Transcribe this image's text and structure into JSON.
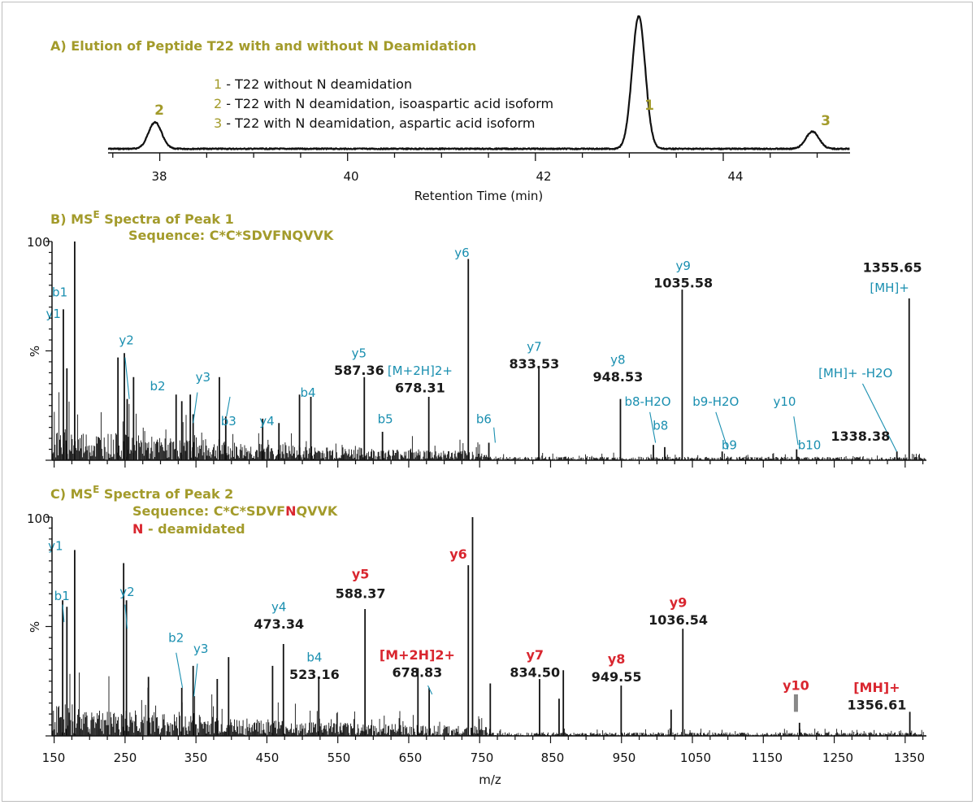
{
  "colors": {
    "title": "#a39b2b",
    "ion_label": "#1a8fb0",
    "deamidated": "#d9262f",
    "trace": "#111111",
    "mass_label": "#1b1b1b"
  },
  "chart_data": [
    {
      "type": "line",
      "title": "A) Elution of Peptide T22 with and without N Deamidation",
      "xlabel": "Retention Time (min)",
      "ylabel": "",
      "xlim": [
        37.45,
        45.35
      ],
      "xticks": [
        "38",
        "40",
        "42",
        "44"
      ],
      "legend": [
        {
          "number": "1",
          "text": "- T22 without N deamidation"
        },
        {
          "number": "2",
          "text": "- T22 with N deamidation, isoaspartic acid isoform"
        },
        {
          "number": "3",
          "text": "- T22 with N deamidation, aspartic acid isoform"
        }
      ],
      "peaks": [
        {
          "label": "2",
          "rt": 37.95,
          "height": 0.2
        },
        {
          "label": "1",
          "rt": 43.1,
          "height": 1.0
        },
        {
          "label": "3",
          "rt": 44.95,
          "height": 0.13
        }
      ]
    },
    {
      "type": "bar",
      "title_prefix": "B) MS",
      "title_sup": "E",
      "title_suffix": " Spectra of Peak 1",
      "sequence_label": "Sequence: C*C*SDVFNQVVK",
      "xlabel": "m/z",
      "ylabel": "%",
      "y_top_label": "100",
      "xlim": [
        147,
        1380
      ],
      "ylim": [
        0,
        100
      ],
      "peaks": [
        {
          "mz": 163,
          "i": 69
        },
        {
          "mz": 168,
          "i": 42
        },
        {
          "mz": 179,
          "i": 100
        },
        {
          "mz": 240,
          "i": 47
        },
        {
          "mz": 249,
          "i": 49
        },
        {
          "mz": 253,
          "i": 28
        },
        {
          "mz": 262,
          "i": 38
        },
        {
          "mz": 322,
          "i": 30
        },
        {
          "mz": 330,
          "i": 27
        },
        {
          "mz": 342,
          "i": 30
        },
        {
          "mz": 346,
          "i": 21
        },
        {
          "mz": 383,
          "i": 38
        },
        {
          "mz": 392,
          "i": 20
        },
        {
          "mz": 444,
          "i": 19
        },
        {
          "mz": 467,
          "i": 17
        },
        {
          "mz": 496,
          "i": 30
        },
        {
          "mz": 512,
          "i": 29
        },
        {
          "mz": 587.36,
          "i": 38
        },
        {
          "mz": 613,
          "i": 13
        },
        {
          "mz": 678.31,
          "i": 29
        },
        {
          "mz": 734,
          "i": 92
        },
        {
          "mz": 763,
          "i": 8
        },
        {
          "mz": 833.53,
          "i": 42
        },
        {
          "mz": 948.53,
          "i": 28
        },
        {
          "mz": 995,
          "i": 7
        },
        {
          "mz": 1011,
          "i": 6
        },
        {
          "mz": 1035.58,
          "i": 78
        },
        {
          "mz": 1092,
          "i": 4
        },
        {
          "mz": 1197,
          "i": 5
        },
        {
          "mz": 1338.38,
          "i": 4
        },
        {
          "mz": 1355.65,
          "i": 74
        }
      ],
      "labels": [
        {
          "text": "y1",
          "color": "cyan",
          "mz": 149,
          "i": 65,
          "bold": false
        },
        {
          "text": "b1",
          "color": "cyan",
          "mz": 158,
          "i": 75,
          "bold": false
        },
        {
          "text": "y2",
          "color": "cyan",
          "mz": 252,
          "i": 53,
          "bold": false
        },
        {
          "text": "b2",
          "color": "cyan",
          "mz": 296,
          "i": 32,
          "bold": false
        },
        {
          "text": "y3",
          "color": "cyan",
          "mz": 360,
          "i": 36,
          "bold": false
        },
        {
          "text": "b3",
          "color": "cyan",
          "mz": 396,
          "i": 16,
          "bold": false
        },
        {
          "text": "y4",
          "color": "cyan",
          "mz": 450,
          "i": 16,
          "bold": false
        },
        {
          "text": "b4",
          "color": "cyan",
          "mz": 508,
          "i": 29,
          "bold": false
        },
        {
          "text": "y5",
          "color": "cyan",
          "mz": 580,
          "i": 47,
          "bold": false
        },
        {
          "text": "587.36",
          "color": "dark",
          "mz": 580,
          "i": 39,
          "bold": true
        },
        {
          "text": "b5",
          "color": "cyan",
          "mz": 617,
          "i": 17,
          "bold": false
        },
        {
          "text": "[M+2H]2+",
          "color": "cyan",
          "mz": 666,
          "i": 39,
          "bold": false
        },
        {
          "text": "678.31",
          "color": "dark",
          "mz": 666,
          "i": 31,
          "bold": true
        },
        {
          "text": "b6",
          "color": "cyan",
          "mz": 756,
          "i": 17,
          "bold": false
        },
        {
          "text": "y6",
          "color": "cyan",
          "mz": 725,
          "i": 93,
          "bold": false
        },
        {
          "text": "y7",
          "color": "cyan",
          "mz": 827,
          "i": 50,
          "bold": false
        },
        {
          "text": "833.53",
          "color": "dark",
          "mz": 827,
          "i": 42,
          "bold": true
        },
        {
          "text": "y8",
          "color": "cyan",
          "mz": 945,
          "i": 44,
          "bold": false
        },
        {
          "text": "948.53",
          "color": "dark",
          "mz": 945,
          "i": 36,
          "bold": true
        },
        {
          "text": "b8-H2O",
          "color": "cyan",
          "mz": 987,
          "i": 25,
          "bold": false
        },
        {
          "text": "b8",
          "color": "cyan",
          "mz": 1005,
          "i": 14,
          "bold": false
        },
        {
          "text": "y9",
          "color": "cyan",
          "mz": 1037,
          "i": 87,
          "bold": false
        },
        {
          "text": "1035.58",
          "color": "dark",
          "mz": 1037,
          "i": 79,
          "bold": true
        },
        {
          "text": "b9-H2O",
          "color": "cyan",
          "mz": 1083,
          "i": 25,
          "bold": false
        },
        {
          "text": "b9",
          "color": "cyan",
          "mz": 1102,
          "i": 5,
          "bold": false
        },
        {
          "text": "y10",
          "color": "cyan",
          "mz": 1180,
          "i": 25,
          "bold": false
        },
        {
          "text": "b10",
          "color": "cyan",
          "mz": 1215,
          "i": 5,
          "bold": false
        },
        {
          "text": "1338.38",
          "color": "dark",
          "mz": 1287,
          "i": 9,
          "bold": true
        },
        {
          "text": "[MH]+ -H2O",
          "color": "cyan",
          "mz": 1280,
          "i": 38,
          "bold": false
        },
        {
          "text": "1355.65",
          "color": "dark",
          "mz": 1332,
          "i": 86,
          "bold": true
        },
        {
          "text": "[MH]+",
          "color": "cyan",
          "mz": 1328,
          "i": 77,
          "bold": false
        }
      ],
      "connectors": [
        {
          "from": [
            250,
            47
          ],
          "to": [
            256,
            28
          ]
        },
        {
          "from": [
            352,
            31
          ],
          "to": [
            346,
            17
          ]
        },
        {
          "from": [
            398,
            29
          ],
          "to": [
            393,
            20
          ]
        },
        {
          "from": [
            770,
            15
          ],
          "to": [
            772,
            8
          ]
        },
        {
          "from": [
            990,
            22
          ],
          "to": [
            998,
            8
          ]
        },
        {
          "from": [
            1083,
            22
          ],
          "to": [
            1100,
            5
          ]
        },
        {
          "from": [
            1193,
            20
          ],
          "to": [
            1199,
            7
          ]
        },
        {
          "from": [
            1290,
            35
          ],
          "to": [
            1338,
            4
          ]
        }
      ]
    },
    {
      "type": "bar",
      "title_prefix": "C) MS",
      "title_sup": "E",
      "title_suffix": " Spectra of Peak 2",
      "sequence_prefix": "Sequence: C*C*SDVF",
      "sequence_mark": "N",
      "sequence_suffix": "QVVK",
      "note_mark": "N",
      "note_suffix": " - deamidated",
      "xlabel": "m/z",
      "ylabel": "%",
      "y_top_label": "100",
      "xlim": [
        147,
        1380
      ],
      "ylim": [
        0,
        100
      ],
      "xticks": [
        "150",
        "250",
        "350",
        "450",
        "550",
        "650",
        "750",
        "850",
        "950",
        "1050",
        "1150",
        "1250",
        "1350"
      ],
      "peaks": [
        {
          "mz": 162,
          "i": 62
        },
        {
          "mz": 168,
          "i": 59
        },
        {
          "mz": 179,
          "i": 85
        },
        {
          "mz": 248,
          "i": 79
        },
        {
          "mz": 252,
          "i": 62
        },
        {
          "mz": 283,
          "i": 27
        },
        {
          "mz": 330,
          "i": 22
        },
        {
          "mz": 346,
          "i": 32
        },
        {
          "mz": 380,
          "i": 26
        },
        {
          "mz": 396,
          "i": 36
        },
        {
          "mz": 458,
          "i": 32
        },
        {
          "mz": 473.34,
          "i": 42
        },
        {
          "mz": 523.16,
          "i": 26
        },
        {
          "mz": 588.37,
          "i": 58
        },
        {
          "mz": 663,
          "i": 31
        },
        {
          "mz": 678.83,
          "i": 22
        },
        {
          "mz": 734,
          "i": 78
        },
        {
          "mz": 740,
          "i": 100
        },
        {
          "mz": 765,
          "i": 24
        },
        {
          "mz": 834.5,
          "i": 26
        },
        {
          "mz": 862,
          "i": 17
        },
        {
          "mz": 868,
          "i": 30
        },
        {
          "mz": 949.55,
          "i": 23
        },
        {
          "mz": 1020,
          "i": 12
        },
        {
          "mz": 1036.54,
          "i": 49
        },
        {
          "mz": 1201,
          "i": 6
        },
        {
          "mz": 1356.61,
          "i": 11
        }
      ],
      "labels": [
        {
          "text": "y1",
          "color": "cyan",
          "mz": 152,
          "i": 85,
          "bold": false
        },
        {
          "text": "b1",
          "color": "cyan",
          "mz": 161,
          "i": 62,
          "bold": false
        },
        {
          "text": "y2",
          "color": "cyan",
          "mz": 253,
          "i": 64,
          "bold": false
        },
        {
          "text": "b2",
          "color": "cyan",
          "mz": 322,
          "i": 43,
          "bold": false
        },
        {
          "text": "y3",
          "color": "cyan",
          "mz": 357,
          "i": 38,
          "bold": false
        },
        {
          "text": "y4",
          "color": "cyan",
          "mz": 467,
          "i": 57,
          "bold": false
        },
        {
          "text": "473.34",
          "color": "dark",
          "mz": 467,
          "i": 49,
          "bold": true
        },
        {
          "text": "b4",
          "color": "cyan",
          "mz": 517,
          "i": 34,
          "bold": false
        },
        {
          "text": "523.16",
          "color": "dark",
          "mz": 517,
          "i": 26,
          "bold": true
        },
        {
          "text": "y5",
          "color": "red",
          "mz": 582,
          "i": 72,
          "bold": true
        },
        {
          "text": "588.37",
          "color": "dark",
          "mz": 582,
          "i": 63,
          "bold": true
        },
        {
          "text": "[M+2H]2+",
          "color": "red",
          "mz": 662,
          "i": 35,
          "bold": true
        },
        {
          "text": "678.83",
          "color": "dark",
          "mz": 662,
          "i": 27,
          "bold": true
        },
        {
          "text": "y6",
          "color": "red",
          "mz": 720,
          "i": 81,
          "bold": true
        },
        {
          "text": "y7",
          "color": "red",
          "mz": 828,
          "i": 35,
          "bold": true
        },
        {
          "text": "834.50",
          "color": "dark",
          "mz": 828,
          "i": 27,
          "bold": true
        },
        {
          "text": "y8",
          "color": "red",
          "mz": 943,
          "i": 33,
          "bold": true
        },
        {
          "text": "949.55",
          "color": "dark",
          "mz": 943,
          "i": 25,
          "bold": true
        },
        {
          "text": "y9",
          "color": "red",
          "mz": 1030,
          "i": 59,
          "bold": true
        },
        {
          "text": "1036.54",
          "color": "dark",
          "mz": 1030,
          "i": 51,
          "bold": true
        },
        {
          "text": "y10",
          "color": "red",
          "mz": 1196,
          "i": 21,
          "bold": true
        },
        {
          "text": "[MH]+",
          "color": "red",
          "mz": 1310,
          "i": 20,
          "bold": true
        },
        {
          "text": "1356.61",
          "color": "dark",
          "mz": 1310,
          "i": 12,
          "bold": true
        }
      ],
      "connectors": [
        {
          "from": [
            162,
            60
          ],
          "to": [
            164,
            52
          ]
        },
        {
          "from": [
            250,
            60
          ],
          "to": [
            253,
            49
          ]
        },
        {
          "from": [
            322,
            38
          ],
          "to": [
            331,
            22
          ]
        },
        {
          "from": [
            352,
            33
          ],
          "to": [
            347,
            18
          ]
        },
        {
          "from": [
            677,
            23
          ],
          "to": [
            683,
            19
          ]
        }
      ],
      "marker": {
        "mz": 1196,
        "from": 19,
        "to": 11
      }
    }
  ]
}
